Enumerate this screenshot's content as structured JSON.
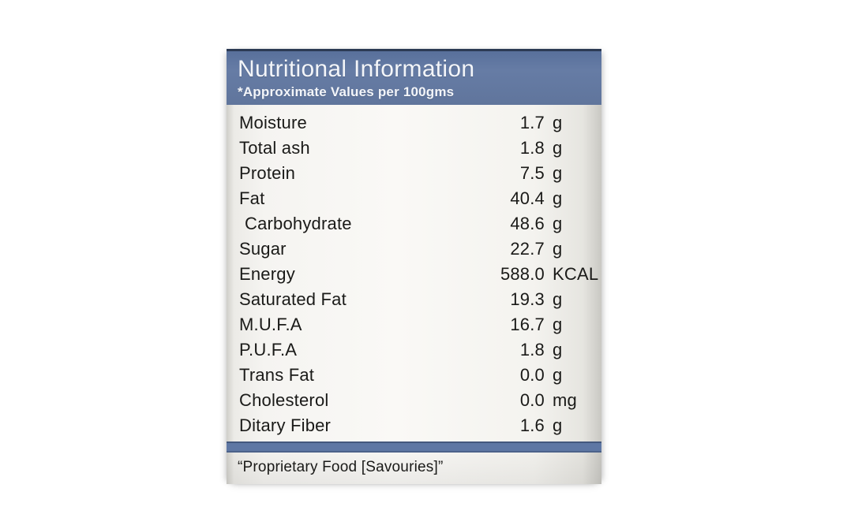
{
  "label": {
    "title": "Nutritional Information",
    "subtitle": "*Approximate Values per 100gms",
    "rows": [
      {
        "name": "Moisture",
        "value": "1.7",
        "unit": "g"
      },
      {
        "name": "Total ash",
        "value": "1.8",
        "unit": "g"
      },
      {
        "name": "Protein",
        "value": "7.5",
        "unit": "g"
      },
      {
        "name": "Fat",
        "value": "40.4",
        "unit": "g"
      },
      {
        "name": "Carbohydrate",
        "value": "48.6",
        "unit": "g"
      },
      {
        "name": "Sugar",
        "value": "22.7",
        "unit": "g"
      },
      {
        "name": "Energy",
        "value": "588.0",
        "unit": "KCAL"
      },
      {
        "name": "Saturated Fat",
        "value": "19.3",
        "unit": "g"
      },
      {
        "name": "M.U.F.A",
        "value": "16.7",
        "unit": "g"
      },
      {
        "name": "P.U.F.A",
        "value": "1.8",
        "unit": "g"
      },
      {
        "name": "Trans Fat",
        "value": "0.0",
        "unit": "g"
      },
      {
        "name": "Cholesterol",
        "value": "0.0",
        "unit": "mg"
      },
      {
        "name": "Ditary Fiber",
        "value": "1.6",
        "unit": "g"
      }
    ],
    "footer": "“Proprietary Food [Savouries]”",
    "colors": {
      "header-bar": "#667ca5",
      "header-top-edge": "#2c3a54",
      "header-text": "#f3f5f9",
      "divider-bar": "#5e77a4",
      "body-text": "#1a1a18"
    }
  }
}
